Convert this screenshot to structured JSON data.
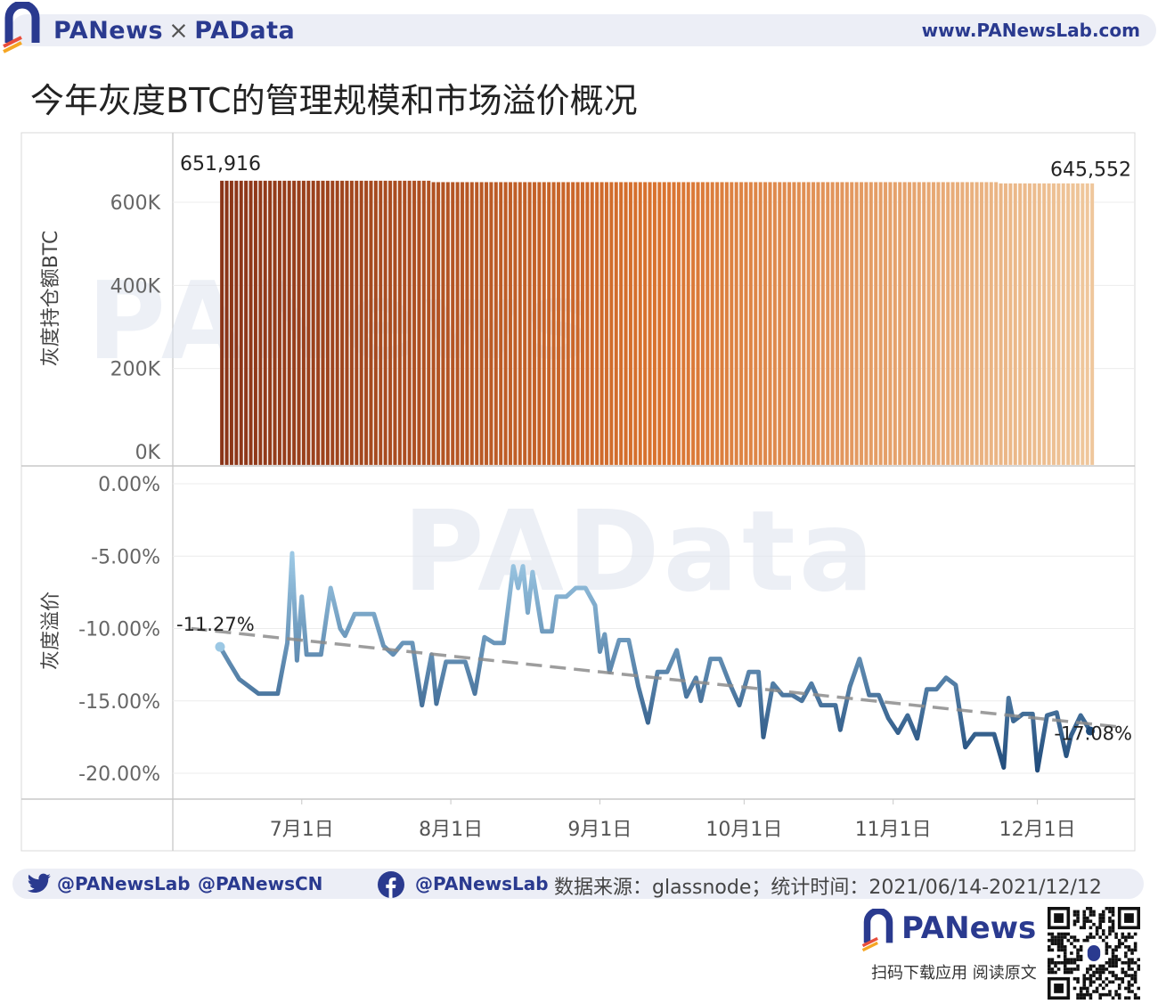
{
  "header": {
    "brand_left": "PANews",
    "brand_sep": "×",
    "brand_right": "PAData",
    "site": "www.PANewsLab.com"
  },
  "title": "今年灰度BTC的管理规模和市场溢价概况",
  "watermarks": [
    "PANews",
    "PAData"
  ],
  "colors": {
    "bar_start": "#8a3418",
    "bar_mid": "#d9722e",
    "bar_end": "#efc79c",
    "line_light": "#9cc8e4",
    "line_dark": "#1f4a7a",
    "trend": "#8c8c8c",
    "brand": "#2a3a8f"
  },
  "chart_data": [
    {
      "type": "bar",
      "ylabel": "灰度持仓额BTC",
      "ylim": [
        0,
        700000
      ],
      "yticks": [
        "600K",
        "400K",
        "200K",
        "0K"
      ],
      "ytick_values": [
        600000,
        400000,
        200000,
        0
      ],
      "x_start": "2021-06-14",
      "x_end": "2021-12-12",
      "segments": [
        {
          "from": "2021-06-14",
          "to": "2021-07-27",
          "value": 651916
        },
        {
          "from": "2021-07-28",
          "to": "2021-11-22",
          "value": 648500
        },
        {
          "from": "2021-11-23",
          "to": "2021-12-12",
          "value": 645552
        }
      ],
      "annotations": [
        {
          "text": "651,916",
          "date": "2021-06-14",
          "value": 651916
        },
        {
          "text": "645,552",
          "date": "2021-12-12",
          "value": 645552
        }
      ]
    },
    {
      "type": "line",
      "ylabel": "灰度溢价",
      "ylim": [
        -22,
        0
      ],
      "yticks": [
        "0.00%",
        "-5.00%",
        "-10.00%",
        "-15.00%",
        "-20.00%"
      ],
      "ytick_values": [
        0,
        -5,
        -10,
        -15,
        -20
      ],
      "x_start": "2021-06-14",
      "x_end": "2021-12-12",
      "trend": {
        "from": [
          "2021-06-08",
          -10.0
        ],
        "to": [
          "2021-12-18",
          -16.8
        ]
      },
      "annotations": [
        {
          "text": "-11.27%",
          "date": "2021-06-14",
          "value": -11.27
        },
        {
          "text": "-17.08%",
          "date": "2021-12-12",
          "value": -17.08
        }
      ],
      "points": [
        [
          "2021-06-14",
          -11.27
        ],
        [
          "2021-06-16",
          -12.4
        ],
        [
          "2021-06-18",
          -13.5
        ],
        [
          "2021-06-20",
          -14.0
        ],
        [
          "2021-06-22",
          -14.5
        ],
        [
          "2021-06-24",
          -14.5
        ],
        [
          "2021-06-26",
          -14.5
        ],
        [
          "2021-06-28",
          -11.0
        ],
        [
          "2021-06-29",
          -4.8
        ],
        [
          "2021-06-30",
          -12.2
        ],
        [
          "2021-07-01",
          -7.8
        ],
        [
          "2021-07-02",
          -11.8
        ],
        [
          "2021-07-04",
          -11.8
        ],
        [
          "2021-07-05",
          -11.8
        ],
        [
          "2021-07-07",
          -7.2
        ],
        [
          "2021-07-09",
          -10.0
        ],
        [
          "2021-07-10",
          -10.5
        ],
        [
          "2021-07-12",
          -9.0
        ],
        [
          "2021-07-14",
          -9.0
        ],
        [
          "2021-07-16",
          -9.0
        ],
        [
          "2021-07-18",
          -11.2
        ],
        [
          "2021-07-20",
          -11.8
        ],
        [
          "2021-07-22",
          -11.0
        ],
        [
          "2021-07-24",
          -11.0
        ],
        [
          "2021-07-26",
          -15.3
        ],
        [
          "2021-07-28",
          -11.8
        ],
        [
          "2021-07-29",
          -15.2
        ],
        [
          "2021-07-31",
          -12.3
        ],
        [
          "2021-08-02",
          -12.3
        ],
        [
          "2021-08-04",
          -12.3
        ],
        [
          "2021-08-06",
          -14.5
        ],
        [
          "2021-08-08",
          -10.6
        ],
        [
          "2021-08-10",
          -11.0
        ],
        [
          "2021-08-12",
          -11.0
        ],
        [
          "2021-08-14",
          -5.7
        ],
        [
          "2021-08-15",
          -7.2
        ],
        [
          "2021-08-16",
          -5.7
        ],
        [
          "2021-08-17",
          -8.9
        ],
        [
          "2021-08-18",
          -6.1
        ],
        [
          "2021-08-20",
          -10.2
        ],
        [
          "2021-08-22",
          -10.2
        ],
        [
          "2021-08-23",
          -7.8
        ],
        [
          "2021-08-25",
          -7.8
        ],
        [
          "2021-08-27",
          -7.2
        ],
        [
          "2021-08-29",
          -7.2
        ],
        [
          "2021-08-31",
          -8.4
        ],
        [
          "2021-09-01",
          -11.6
        ],
        [
          "2021-09-02",
          -10.4
        ],
        [
          "2021-09-03",
          -13.0
        ],
        [
          "2021-09-05",
          -10.8
        ],
        [
          "2021-09-07",
          -10.8
        ],
        [
          "2021-09-09",
          -14.0
        ],
        [
          "2021-09-11",
          -16.5
        ],
        [
          "2021-09-13",
          -13.0
        ],
        [
          "2021-09-15",
          -13.0
        ],
        [
          "2021-09-17",
          -11.5
        ],
        [
          "2021-09-19",
          -14.7
        ],
        [
          "2021-09-21",
          -13.4
        ],
        [
          "2021-09-22",
          -15.0
        ],
        [
          "2021-09-24",
          -12.1
        ],
        [
          "2021-09-26",
          -12.1
        ],
        [
          "2021-09-28",
          -13.8
        ],
        [
          "2021-09-30",
          -15.3
        ],
        [
          "2021-10-02",
          -13.0
        ],
        [
          "2021-10-04",
          -13.0
        ],
        [
          "2021-10-05",
          -17.5
        ],
        [
          "2021-10-07",
          -13.8
        ],
        [
          "2021-10-09",
          -14.6
        ],
        [
          "2021-10-11",
          -14.6
        ],
        [
          "2021-10-13",
          -15.0
        ],
        [
          "2021-10-15",
          -13.8
        ],
        [
          "2021-10-17",
          -15.3
        ],
        [
          "2021-10-19",
          -15.3
        ],
        [
          "2021-10-20",
          -15.3
        ],
        [
          "2021-10-21",
          -17.0
        ],
        [
          "2021-10-23",
          -14.0
        ],
        [
          "2021-10-25",
          -12.1
        ],
        [
          "2021-10-27",
          -14.6
        ],
        [
          "2021-10-29",
          -14.6
        ],
        [
          "2021-10-31",
          -16.2
        ],
        [
          "2021-11-02",
          -17.2
        ],
        [
          "2021-11-04",
          -16.0
        ],
        [
          "2021-11-06",
          -17.6
        ],
        [
          "2021-11-08",
          -14.2
        ],
        [
          "2021-11-10",
          -14.2
        ],
        [
          "2021-11-12",
          -13.4
        ],
        [
          "2021-11-14",
          -13.9
        ],
        [
          "2021-11-16",
          -18.2
        ],
        [
          "2021-11-18",
          -17.3
        ],
        [
          "2021-11-20",
          -17.3
        ],
        [
          "2021-11-22",
          -17.3
        ],
        [
          "2021-11-24",
          -19.6
        ],
        [
          "2021-11-25",
          -14.8
        ],
        [
          "2021-11-26",
          -16.4
        ],
        [
          "2021-11-28",
          -15.9
        ],
        [
          "2021-11-30",
          -15.9
        ],
        [
          "2021-12-01",
          -19.8
        ],
        [
          "2021-12-03",
          -16.0
        ],
        [
          "2021-12-05",
          -15.8
        ],
        [
          "2021-12-07",
          -18.8
        ],
        [
          "2021-12-08",
          -17.4
        ],
        [
          "2021-12-10",
          -16.0
        ],
        [
          "2021-12-12",
          -17.08
        ]
      ]
    }
  ],
  "x_axis": {
    "ticks": [
      "7月1日",
      "8月1日",
      "9月1日",
      "10月1日",
      "11月1日",
      "12月1日"
    ],
    "tick_dates": [
      "2021-07-01",
      "2021-08-01",
      "2021-09-01",
      "2021-10-01",
      "2021-11-01",
      "2021-12-01"
    ]
  },
  "footer": {
    "twitter_1": "@PANewsLab",
    "twitter_2": "@PANewsCN",
    "facebook": "@PANewsLab",
    "source": "数据来源：glassnode；统计时间：2021/06/14-2021/12/12",
    "brand": "PANews",
    "scan": "扫码下载应用 阅读原文"
  }
}
